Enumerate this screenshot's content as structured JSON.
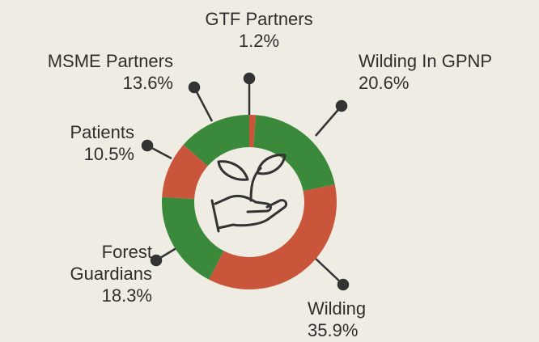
{
  "chart_data": {
    "type": "donut",
    "categories": [
      "GTF Partners",
      "Wilding In GPNP",
      "Wilding",
      "Forest Guardians",
      "Patients",
      "MSME Partners"
    ],
    "values": [
      1.2,
      20.6,
      35.9,
      18.3,
      10.5,
      13.6
    ],
    "value_labels": [
      "1.2%",
      "20.6%",
      "35.9%",
      "18.3%",
      "10.5%",
      "13.6%"
    ],
    "colors": [
      "#c9563b",
      "#3b8a3c",
      "#c9563b",
      "#3b8a3c",
      "#c9563b",
      "#3b8a3c"
    ]
  }
}
